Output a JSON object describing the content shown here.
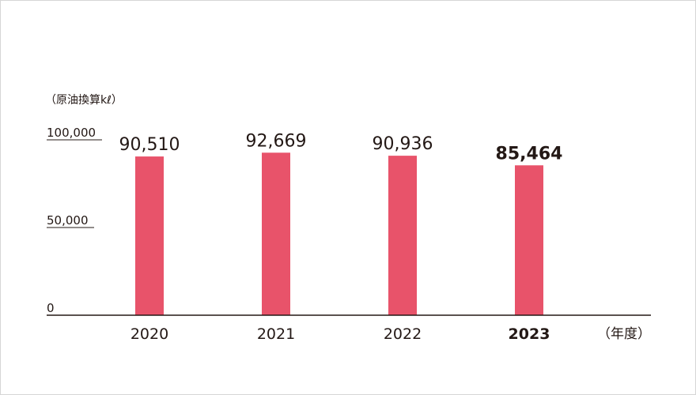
{
  "chart_data": {
    "type": "bar",
    "ylabel": "（原油換算kℓ）",
    "xunit": "（年度）",
    "categories": [
      "2020",
      "2021",
      "2022",
      "2023"
    ],
    "values": [
      90510,
      92669,
      90936,
      85464
    ],
    "value_labels": [
      "90,510",
      "92,669",
      "90,936",
      "85,464"
    ],
    "highlight_index": 3,
    "ylim": [
      0,
      100000
    ],
    "y_ticks": [
      {
        "value": 0,
        "label": "0"
      },
      {
        "value": 50000,
        "label": "50,000"
      },
      {
        "value": 100000,
        "label": "100,000"
      }
    ],
    "grid": false,
    "bar_color": "#e8536a",
    "axis_color": "#231815"
  }
}
